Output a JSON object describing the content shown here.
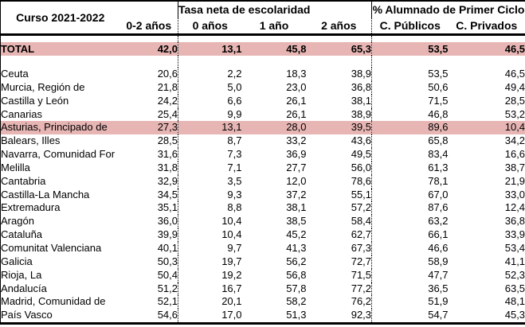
{
  "colors": {
    "highlight_rose": "#e7b6b4",
    "border": "#000000",
    "text": "#000000",
    "background": "#ffffff"
  },
  "header": {
    "corner_label": "Curso 2021-2022",
    "group1_label": "Tasa neta de escolaridad",
    "group2_label": "% Alumnado de Primer Ciclo",
    "columns": [
      "0-2 años",
      "0 años",
      "1 año",
      "2 años",
      "C. Públicos",
      "C. Privados"
    ]
  },
  "chart_data": {
    "type": "table",
    "title": "Curso 2021-2022",
    "column_groups": [
      {
        "label": "",
        "columns": [
          "0-2 años"
        ]
      },
      {
        "label": "Tasa neta de escolaridad",
        "columns": [
          "0 años",
          "1 año",
          "2 años"
        ]
      },
      {
        "label": "% Alumnado de Primer Ciclo",
        "columns": [
          "C. Públicos",
          "C. Privados"
        ]
      }
    ],
    "columns": [
      "0-2 años",
      "0 años",
      "1 año",
      "2 años",
      "C. Públicos",
      "C. Privados"
    ],
    "decimal_separator": ",",
    "total": {
      "label": "TOTAL",
      "values": [
        "42,0",
        "13,1",
        "45,8",
        "65,3",
        "53,5",
        "46,5"
      ],
      "highlight": true
    },
    "rows": [
      {
        "label": "Ceuta",
        "values": [
          "20,6",
          "2,2",
          "18,3",
          "38,9",
          "53,5",
          "46,5"
        ],
        "highlight": false
      },
      {
        "label": "Murcia, Región de",
        "values": [
          "21,8",
          "5,0",
          "23,0",
          "36,8",
          "50,6",
          "49,4"
        ],
        "highlight": false
      },
      {
        "label": "Castilla y León",
        "values": [
          "24,2",
          "6,6",
          "26,1",
          "38,1",
          "71,5",
          "28,5"
        ],
        "highlight": false
      },
      {
        "label": "Canarias",
        "values": [
          "25,4",
          "9,9",
          "26,1",
          "38,9",
          "46,8",
          "53,2"
        ],
        "highlight": false
      },
      {
        "label": "Asturias, Principado de",
        "values": [
          "27,3",
          "13,1",
          "28,0",
          "39,5",
          "89,6",
          "10,4"
        ],
        "highlight": true
      },
      {
        "label": "Balears, Illes",
        "values": [
          "28,5",
          "8,7",
          "33,2",
          "43,6",
          "65,8",
          "34,2"
        ],
        "highlight": false
      },
      {
        "label": "Navarra, Comunidad For",
        "values": [
          "31,6",
          "7,3",
          "36,9",
          "49,5",
          "83,4",
          "16,6"
        ],
        "highlight": false
      },
      {
        "label": "Melilla",
        "values": [
          "31,8",
          "7,1",
          "27,7",
          "56,0",
          "61,3",
          "38,7"
        ],
        "highlight": false
      },
      {
        "label": "Cantabria",
        "values": [
          "32,9",
          "3,5",
          "12,0",
          "78,6",
          "78,1",
          "21,9"
        ],
        "highlight": false
      },
      {
        "label": "Castilla-La Mancha",
        "values": [
          "34,5",
          "9,3",
          "37,2",
          "55,1",
          "67,0",
          "33,0"
        ],
        "highlight": false
      },
      {
        "label": "Extremadura",
        "values": [
          "35,1",
          "8,8",
          "38,1",
          "57,2",
          "87,6",
          "12,4"
        ],
        "highlight": false
      },
      {
        "label": "Aragón",
        "values": [
          "36,0",
          "10,4",
          "38,5",
          "58,4",
          "63,2",
          "36,8"
        ],
        "highlight": false
      },
      {
        "label": "Cataluña",
        "values": [
          "39,9",
          "10,4",
          "45,2",
          "62,7",
          "66,1",
          "33,9"
        ],
        "highlight": false
      },
      {
        "label": "Comunitat Valenciana",
        "values": [
          "40,1",
          "9,7",
          "41,3",
          "67,3",
          "46,6",
          "53,4"
        ],
        "highlight": false
      },
      {
        "label": "Galicia",
        "values": [
          "50,3",
          "19,7",
          "56,2",
          "72,7",
          "58,9",
          "41,1"
        ],
        "highlight": false
      },
      {
        "label": "Rioja, La",
        "values": [
          "50,4",
          "19,2",
          "56,8",
          "71,5",
          "47,7",
          "52,3"
        ],
        "highlight": false
      },
      {
        "label": "Andalucía",
        "values": [
          "51,2",
          "16,7",
          "57,8",
          "77,2",
          "36,5",
          "63,5"
        ],
        "highlight": false
      },
      {
        "label": "Madrid, Comunidad de",
        "values": [
          "52,1",
          "20,1",
          "58,2",
          "76,2",
          "51,9",
          "48,1"
        ],
        "highlight": false
      },
      {
        "label": "País Vasco",
        "values": [
          "54,6",
          "17,0",
          "51,3",
          "92,3",
          "54,7",
          "45,3"
        ],
        "highlight": false
      }
    ]
  }
}
